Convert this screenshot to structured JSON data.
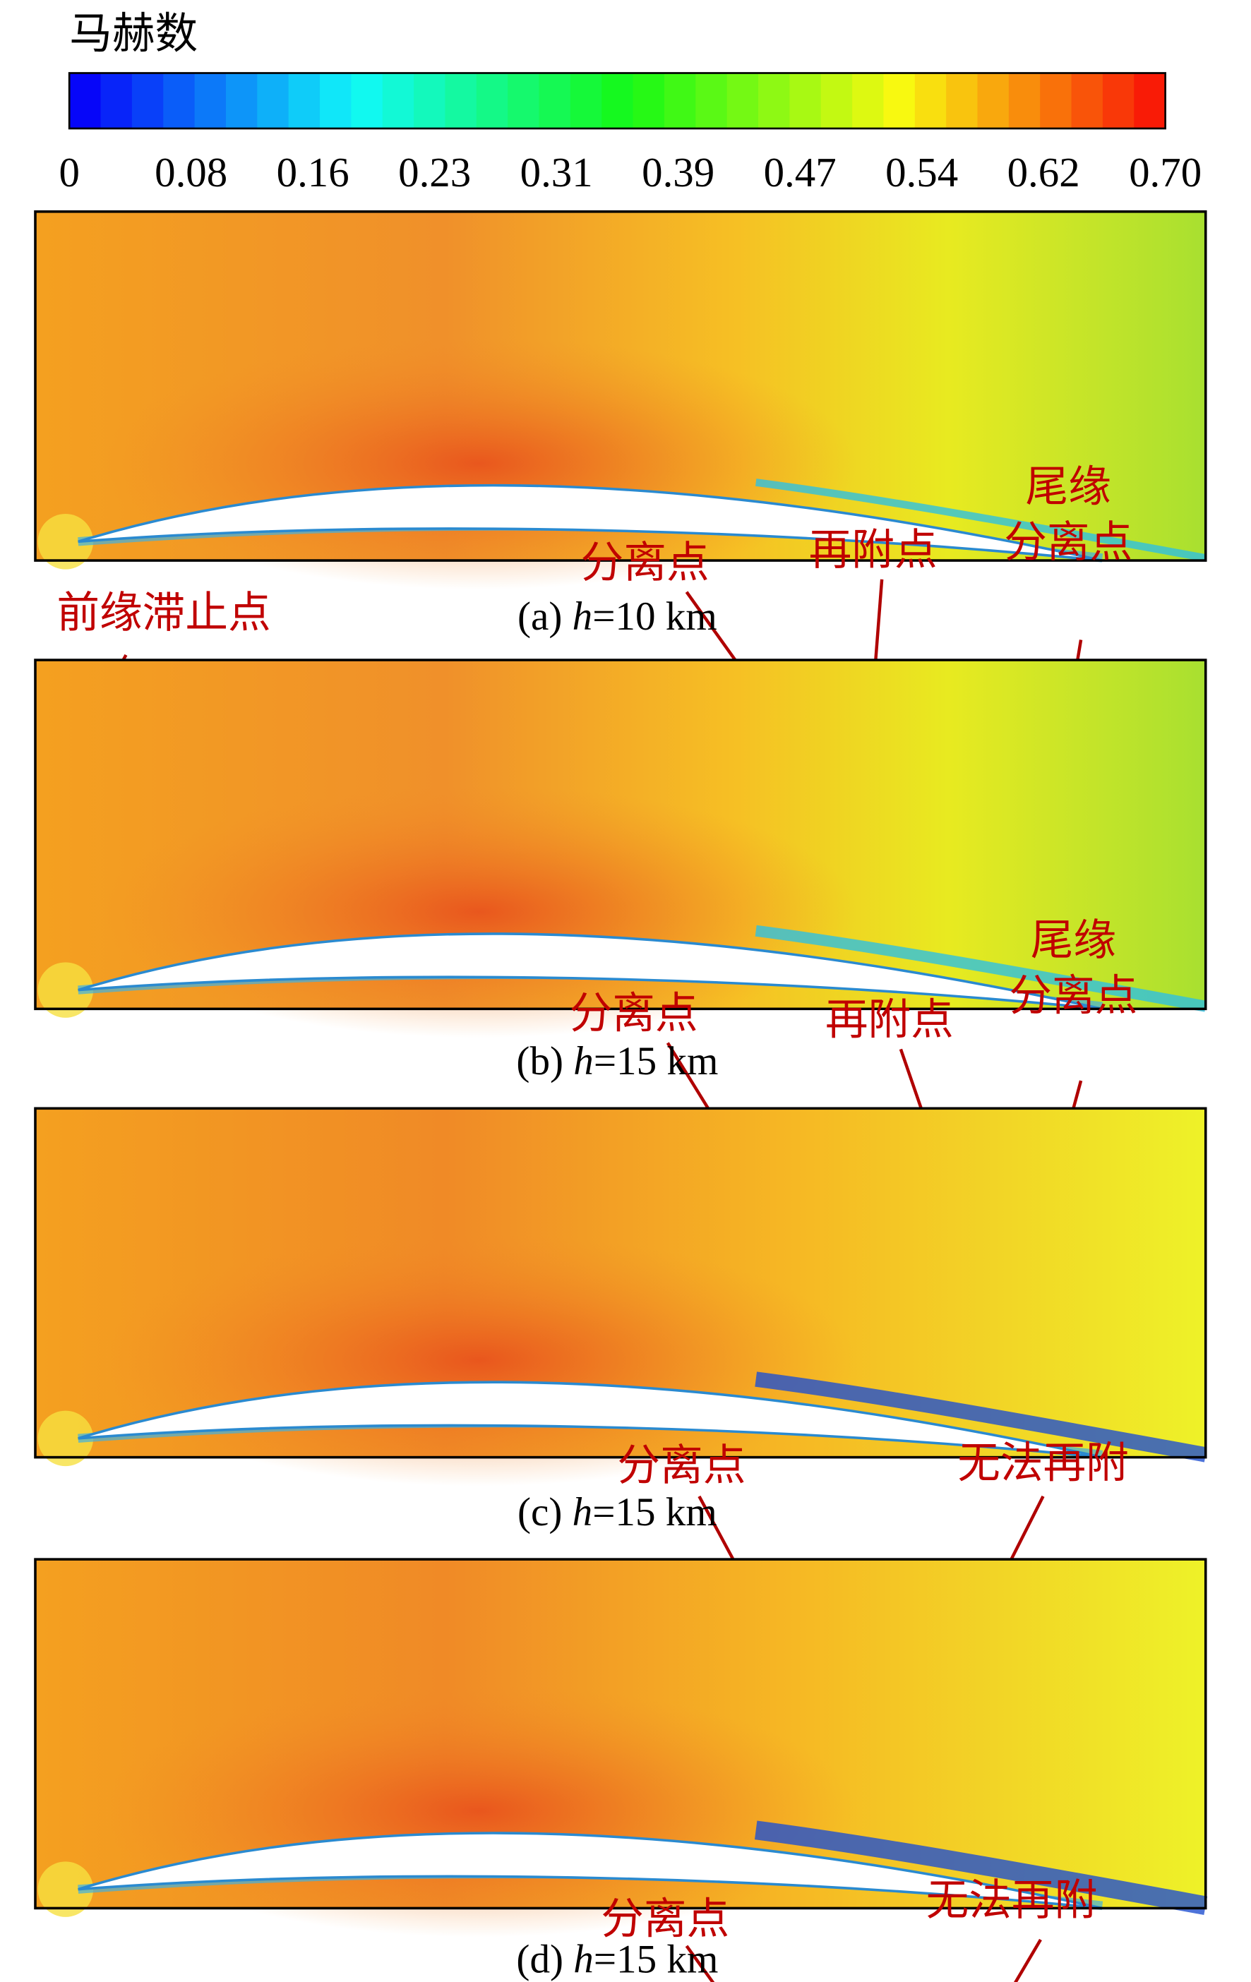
{
  "colorbar": {
    "title": "马赫数",
    "ticks": [
      "0",
      "0.08",
      "0.16",
      "0.23",
      "0.31",
      "0.39",
      "0.47",
      "0.54",
      "0.62",
      "0.70"
    ]
  },
  "panels": [
    {
      "caption": {
        "letter": "(a)",
        "var": "h",
        "rest": "=10 km"
      },
      "labels": [
        {
          "lines": [
            "前缘滞止点"
          ]
        },
        {
          "lines": [
            "分离点"
          ]
        },
        {
          "lines": [
            "再附点"
          ]
        },
        {
          "lines": [
            "尾缘",
            "分离点"
          ]
        }
      ]
    },
    {
      "caption": {
        "letter": "(b)",
        "var": "h",
        "rest": "=15 km"
      },
      "labels": [
        {
          "lines": [
            "分离点"
          ]
        },
        {
          "lines": [
            "再附点"
          ]
        },
        {
          "lines": [
            "尾缘",
            "分离点"
          ]
        }
      ]
    },
    {
      "caption": {
        "letter": "(c)",
        "var": "h",
        "rest": "=15 km"
      },
      "labels": [
        {
          "lines": [
            "分离点"
          ]
        },
        {
          "lines": [
            "无法再附"
          ]
        }
      ]
    },
    {
      "caption": {
        "letter": "(d)",
        "var": "h",
        "rest": "=15 km"
      },
      "labels": [
        {
          "lines": [
            "分离点"
          ]
        },
        {
          "lines": [
            "无法再附"
          ]
        }
      ]
    }
  ]
}
